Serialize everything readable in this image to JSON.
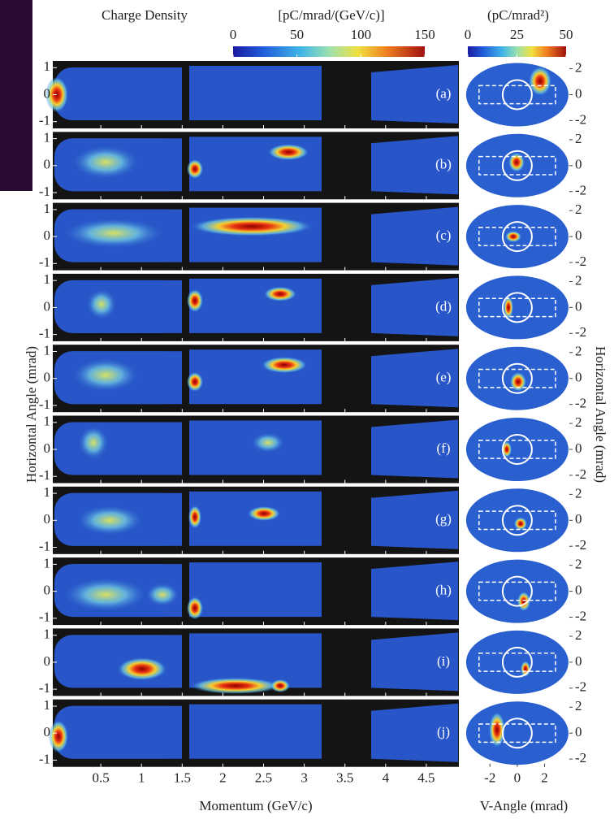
{
  "chart_data": {
    "type": "heatmap-panels",
    "title": "Charge Density",
    "colorbar": {
      "label": "[pC/mrad/(GeV/c)]",
      "lim": [
        0,
        150
      ],
      "ticks": [
        0,
        50,
        100,
        150
      ]
    },
    "colorbar2": {
      "label": "(pC/mrad²)",
      "lim": [
        0,
        50
      ],
      "ticks": [
        0,
        25,
        50
      ]
    },
    "xlabel": "Momentum (GeV/c)",
    "xlim": [
      -0.09,
      4.9
    ],
    "xticks": [
      0.5,
      1,
      1.5,
      2,
      2.5,
      3,
      3.5,
      4,
      4.5
    ],
    "ylabel": "Horizontal Angle (mrad)",
    "ylim": [
      -1.25,
      1.25
    ],
    "yticks": [
      1,
      0,
      -1
    ],
    "x2label": "V-Angle (mrad)",
    "x2lim": [
      -3.8,
      4.05
    ],
    "x2ticks": [
      -2,
      0,
      2
    ],
    "y2label": "Horizontal Angle (mrad)",
    "y2lim": [
      -2.6,
      2.6
    ],
    "y2ticks": [
      2,
      0,
      -2
    ],
    "panels": [
      "(a)",
      "(b)",
      "(c)",
      "(d)",
      "(e)",
      "(f)",
      "(g)",
      "(h)",
      "(i)",
      "(j)"
    ]
  }
}
